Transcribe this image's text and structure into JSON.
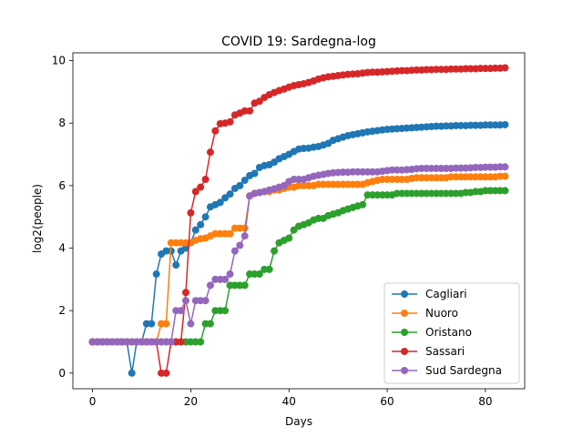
{
  "chart_data": {
    "type": "line",
    "title": "COVID 19: Sardegna-log",
    "xlabel": "Days",
    "ylabel": "log2(people)",
    "xlim": [
      -4,
      88
    ],
    "ylim": [
      -0.5,
      10.25
    ],
    "xticks": [
      0,
      20,
      40,
      60,
      80
    ],
    "yticks": [
      0,
      2,
      4,
      6,
      8,
      10
    ],
    "legend_position": "lower-right",
    "series": [
      {
        "name": "Cagliari",
        "color": "#1f77b4",
        "values": [
          1,
          1,
          1,
          1,
          1,
          1,
          1,
          1,
          0,
          1,
          1,
          1.58,
          1.58,
          3.17,
          3.81,
          3.91,
          3.91,
          3.46,
          3.91,
          4,
          4.17,
          4.58,
          4.75,
          5,
          5.32,
          5.39,
          5.46,
          5.61,
          5.73,
          5.91,
          6,
          6.17,
          6.32,
          6.39,
          6.58,
          6.64,
          6.67,
          6.75,
          6.86,
          6.93,
          7,
          7.09,
          7.17,
          7.19,
          7.2,
          7.23,
          7.25,
          7.3,
          7.35,
          7.45,
          7.5,
          7.55,
          7.6,
          7.63,
          7.66,
          7.69,
          7.72,
          7.74,
          7.76,
          7.78,
          7.8,
          7.81,
          7.82,
          7.83,
          7.84,
          7.85,
          7.86,
          7.87,
          7.88,
          7.89,
          7.9,
          7.9,
          7.91,
          7.91,
          7.92,
          7.92,
          7.92,
          7.93,
          7.93,
          7.93,
          7.94,
          7.94,
          7.94,
          7.94,
          7.95
        ]
      },
      {
        "name": "Nuoro",
        "color": "#ff7f0e",
        "values": [
          1,
          1,
          1,
          1,
          1,
          1,
          1,
          1,
          1,
          1,
          1,
          1,
          1,
          1,
          1.58,
          1.58,
          4.17,
          4.17,
          4.17,
          4.17,
          4.17,
          4.25,
          4.3,
          4.32,
          4.39,
          4.46,
          4.46,
          4.46,
          4.46,
          4.64,
          4.64,
          4.64,
          5.67,
          5.75,
          5.78,
          5.81,
          5.81,
          5.86,
          5.86,
          5.91,
          5.95,
          5.95,
          6,
          6,
          6,
          6,
          6.04,
          6.04,
          6.04,
          6.04,
          6.04,
          6.04,
          6.04,
          6.04,
          6.04,
          6.04,
          6.09,
          6.13,
          6.17,
          6.2,
          6.2,
          6.2,
          6.2,
          6.2,
          6.2,
          6.23,
          6.25,
          6.25,
          6.25,
          6.25,
          6.25,
          6.25,
          6.25,
          6.28,
          6.28,
          6.28,
          6.28,
          6.28,
          6.28,
          6.28,
          6.28,
          6.28,
          6.28,
          6.3,
          6.3
        ]
      },
      {
        "name": "Oristano",
        "color": "#2ca02c",
        "values": [
          1,
          1,
          1,
          1,
          1,
          1,
          1,
          1,
          1,
          1,
          1,
          1,
          1,
          1,
          1,
          1,
          1,
          1,
          1,
          1,
          1,
          1,
          1,
          1.58,
          1.58,
          2,
          2,
          2,
          2.81,
          2.81,
          2.81,
          2.81,
          3.17,
          3.17,
          3.17,
          3.32,
          3.32,
          3.91,
          4.17,
          4.25,
          4.32,
          4.58,
          4.7,
          4.75,
          4.81,
          4.9,
          4.95,
          4.95,
          5.04,
          5.09,
          5.13,
          5.2,
          5.25,
          5.3,
          5.35,
          5.39,
          5.7,
          5.7,
          5.7,
          5.7,
          5.7,
          5.7,
          5.75,
          5.75,
          5.75,
          5.75,
          5.75,
          5.75,
          5.75,
          5.75,
          5.75,
          5.75,
          5.75,
          5.75,
          5.75,
          5.75,
          5.78,
          5.78,
          5.81,
          5.81,
          5.84,
          5.84,
          5.84,
          5.84,
          5.84
        ]
      },
      {
        "name": "Sassari",
        "color": "#d62728",
        "values": [
          1,
          1,
          1,
          1,
          1,
          1,
          1,
          1,
          1,
          1,
          1,
          1,
          1,
          1,
          0,
          0,
          1,
          1,
          1,
          2.58,
          5.13,
          5.81,
          5.95,
          6.2,
          7.07,
          7.75,
          7.98,
          8,
          8.04,
          8.26,
          8.32,
          8.39,
          8.39,
          8.64,
          8.7,
          8.82,
          8.91,
          8.98,
          9.04,
          9.09,
          9.15,
          9.2,
          9.23,
          9.26,
          9.3,
          9.35,
          9.41,
          9.45,
          9.48,
          9.5,
          9.52,
          9.54,
          9.56,
          9.57,
          9.58,
          9.6,
          9.62,
          9.63,
          9.63,
          9.64,
          9.65,
          9.66,
          9.67,
          9.68,
          9.68,
          9.69,
          9.7,
          9.7,
          9.71,
          9.71,
          9.72,
          9.72,
          9.72,
          9.73,
          9.73,
          9.73,
          9.74,
          9.74,
          9.74,
          9.75,
          9.75,
          9.75,
          9.76,
          9.76,
          9.77
        ]
      },
      {
        "name": "Sud Sardegna",
        "color": "#9467bd",
        "values": [
          1,
          1,
          1,
          1,
          1,
          1,
          1,
          1,
          1,
          1,
          1,
          1,
          1,
          1,
          1,
          1,
          1,
          2,
          2,
          2.32,
          1.58,
          2.32,
          2.32,
          2.32,
          2.81,
          3,
          3,
          3,
          3.17,
          3.91,
          4.09,
          4.39,
          5.67,
          5.75,
          5.78,
          5.81,
          5.86,
          5.9,
          5.95,
          6,
          6.13,
          6.2,
          6.2,
          6.2,
          6.25,
          6.3,
          6.33,
          6.36,
          6.39,
          6.41,
          6.42,
          6.43,
          6.43,
          6.44,
          6.44,
          6.44,
          6.44,
          6.44,
          6.44,
          6.46,
          6.48,
          6.5,
          6.5,
          6.5,
          6.51,
          6.52,
          6.54,
          6.55,
          6.55,
          6.55,
          6.55,
          6.55,
          6.55,
          6.55,
          6.56,
          6.56,
          6.56,
          6.57,
          6.58,
          6.58,
          6.59,
          6.59,
          6.59,
          6.6,
          6.6
        ]
      }
    ]
  }
}
